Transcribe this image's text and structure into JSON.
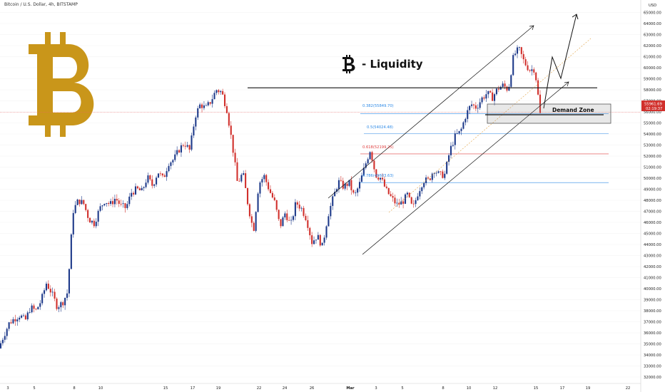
{
  "header": {
    "title": "Bitcoin / U.S. Dollar, 4h, BITSTAMP",
    "currency": "USD"
  },
  "colors": {
    "up": "#1e3a8a",
    "down": "#d1302c",
    "brand": "#c9961a",
    "fib": "#2e8ae6",
    "fib618": "#e04040"
  },
  "annotations": {
    "liquidity_label": "- Liquidity",
    "demand_zone_label": "Demand Zone",
    "fib_382": "0.382(55849.70)",
    "fib_05": "0.5(54024.48)",
    "fib_618": "0.618(52199.25)",
    "fib_786": "0.786(49603.63)",
    "price_tag": "55961.69",
    "timer_tag": "02:19:37"
  },
  "chart_data": {
    "type": "candlestick",
    "title": "Bitcoin / U.S. Dollar, 4h, BITSTAMP",
    "ylabel": "USD",
    "ylim": [
      31500,
      65500
    ],
    "y_ticks": [
      "32000.00",
      "33000.00",
      "34000.00",
      "35000.00",
      "36000.00",
      "37000.00",
      "38000.00",
      "39000.00",
      "40000.00",
      "41000.00",
      "42000.00",
      "43000.00",
      "44000.00",
      "45000.00",
      "46000.00",
      "47000.00",
      "48000.00",
      "49000.00",
      "50000.00",
      "51000.00",
      "52000.00",
      "53000.00",
      "54000.00",
      "55000.00",
      "56000.00",
      "57000.00",
      "58000.00",
      "59000.00",
      "60000.00",
      "61000.00",
      "62000.00",
      "63000.00",
      "64000.00",
      "65000.00"
    ],
    "x_ticks": [
      "3",
      "5",
      "8",
      "10",
      "15",
      "17",
      "19",
      "22",
      "24",
      "26",
      "Mar",
      "3",
      "5",
      "8",
      "10",
      "12",
      "15",
      "17",
      "19",
      "22"
    ],
    "close_path": [
      34600,
      35800,
      36900,
      37300,
      37600,
      37100,
      38300,
      38000,
      38900,
      40500,
      39600,
      38400,
      38700,
      39700,
      47000,
      48000,
      47700,
      46300,
      45900,
      47200,
      48000,
      47600,
      48200,
      47500,
      47300,
      48700,
      49000,
      48800,
      50100,
      49300,
      50600,
      49900,
      51400,
      51700,
      52600,
      53200,
      52500,
      55600,
      56700,
      56300,
      57000,
      58000,
      57800,
      56200,
      53100,
      49500,
      50500,
      47500,
      45200,
      49500,
      50200,
      48900,
      47800,
      45600,
      46900,
      45700,
      47800,
      47300,
      46300,
      44200,
      44800,
      43800,
      46600,
      48200,
      49700,
      49200,
      49600,
      48300,
      49500,
      51100,
      52600,
      50300,
      50000,
      48900,
      48200,
      47600,
      47800,
      48500,
      47200,
      48700,
      49800,
      49800,
      50800,
      50300,
      50300,
      52500,
      53800,
      54200,
      55700,
      56700,
      56400,
      57200,
      57700,
      57300,
      58100,
      58400,
      58000,
      61100,
      61700,
      60500,
      59800,
      59900,
      55900
    ],
    "levels": {
      "liquidity": 58150,
      "fib_382": 55849.7,
      "fib_05": 54024.48,
      "fib_618": 52199.25,
      "fib_786": 49603.63,
      "last_price": 55961.69
    },
    "demand_zone": [
      54200,
      56000
    ]
  }
}
